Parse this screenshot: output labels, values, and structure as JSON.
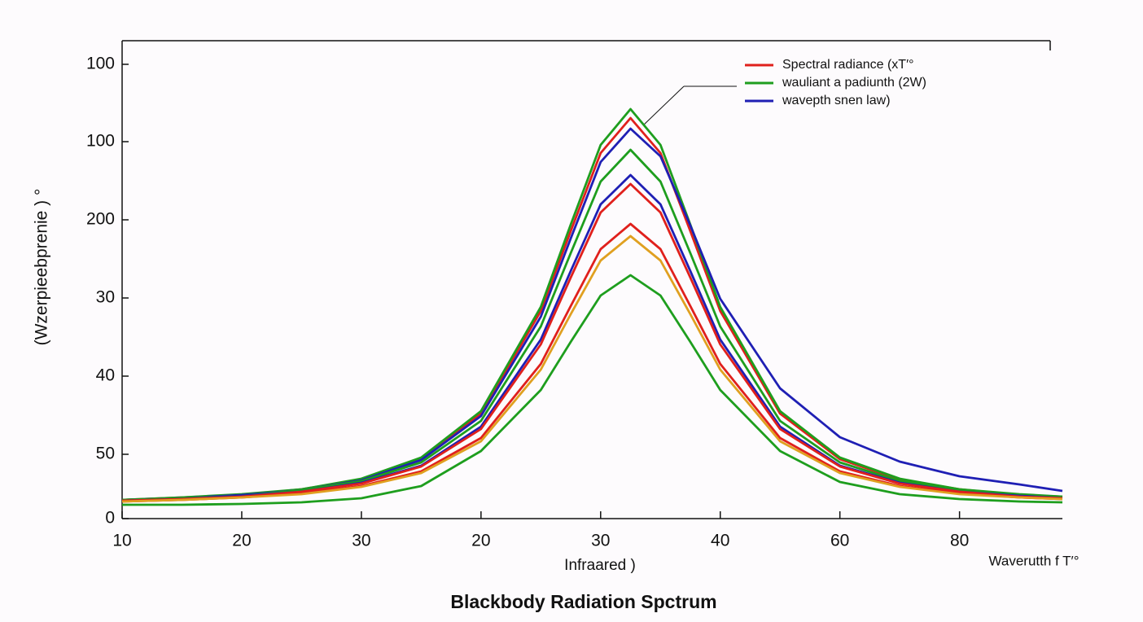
{
  "chart_data": {
    "type": "line",
    "title": "Blackbody Radiation Spctrum",
    "y_axis_label": "(Wzerpieebprenie ) °",
    "x_axis_label": "Infraared )",
    "x_axis_note": "Waverutth f T′°",
    "x": [
      0,
      0.5,
      1,
      1.5,
      2,
      2.5,
      3,
      3.5,
      3.75,
      4,
      4.25,
      4.5,
      4.75,
      5,
      5.5,
      6,
      6.5,
      7,
      7.5,
      7.86
    ],
    "xlim": [
      0,
      7.86
    ],
    "ylim": [
      0,
      590
    ],
    "xticks": [
      {
        "value": 0,
        "label": "10"
      },
      {
        "value": 1,
        "label": "20"
      },
      {
        "value": 2,
        "label": "30"
      },
      {
        "value": 3,
        "label": "20"
      },
      {
        "value": 4,
        "label": "30"
      },
      {
        "value": 5,
        "label": "40"
      },
      {
        "value": 6,
        "label": "60"
      },
      {
        "value": 7,
        "label": "80"
      }
    ],
    "yticks": [
      0,
      {
        "value": 79,
        "label": "50"
      },
      {
        "value": 175,
        "label": "40"
      },
      {
        "value": 271,
        "label": "30"
      },
      {
        "value": 367,
        "label": "200"
      },
      {
        "value": 463,
        "label": "100"
      },
      {
        "value": 558,
        "label": "100"
      }
    ],
    "legend_position": "upper right",
    "series": [
      {
        "name": "Spectral radiance (xT′°",
        "color": "#e0201c",
        "values": [
          23,
          26,
          29,
          36,
          48,
          73,
          129,
          255,
          353,
          449,
          492,
          449,
          353,
          255,
          129,
          73,
          48,
          36,
          29,
          27
        ]
      },
      {
        "name": "wauliant a padiunth (2W)",
        "color": "#1e9e1e",
        "values": [
          23,
          26,
          30,
          36,
          49,
          75,
          132,
          260,
          361,
          459,
          503,
          459,
          361,
          260,
          132,
          75,
          49,
          36,
          30,
          27
        ]
      },
      {
        "name": "wavepth snen law)",
        "color": "#1f1fb4",
        "values": [
          23,
          25,
          29,
          35,
          47,
          72,
          126,
          248,
          344,
          438,
          479,
          445,
          360,
          270,
          160,
          100,
          70,
          52,
          42,
          34
        ]
      },
      {
        "color": "#1e9e1e",
        "values": [
          23,
          25,
          28,
          35,
          46,
          69,
          120,
          236,
          326,
          414,
          453,
          414,
          326,
          236,
          120,
          69,
          46,
          35,
          28,
          26
        ]
      },
      {
        "color": "#1f1fb4",
        "values": [
          22,
          24,
          28,
          33,
          44,
          65,
          113,
          220,
          304,
          386,
          422,
          386,
          304,
          220,
          113,
          65,
          44,
          33,
          28,
          25
        ]
      },
      {
        "color": "#e0201c",
        "values": [
          22,
          24,
          27,
          33,
          43,
          64,
          110,
          214,
          296,
          376,
          411,
          376,
          296,
          214,
          110,
          64,
          43,
          33,
          27,
          25
        ]
      },
      {
        "color": "#e0201c",
        "values": [
          21,
          23,
          26,
          31,
          40,
          58,
          99,
          190,
          261,
          331,
          362,
          331,
          261,
          190,
          99,
          58,
          40,
          31,
          26,
          24
        ]
      },
      {
        "color": "#e0a020",
        "values": [
          21,
          23,
          26,
          30,
          39,
          56,
          95,
          183,
          251,
          317,
          347,
          317,
          251,
          183,
          95,
          56,
          39,
          30,
          26,
          24
        ]
      },
      {
        "color": "#1e9e1e",
        "values": [
          17,
          17,
          18,
          20,
          25,
          40,
          83,
          158,
          217,
          274,
          299,
          274,
          217,
          158,
          83,
          45,
          30,
          24,
          21,
          20
        ]
      }
    ]
  }
}
